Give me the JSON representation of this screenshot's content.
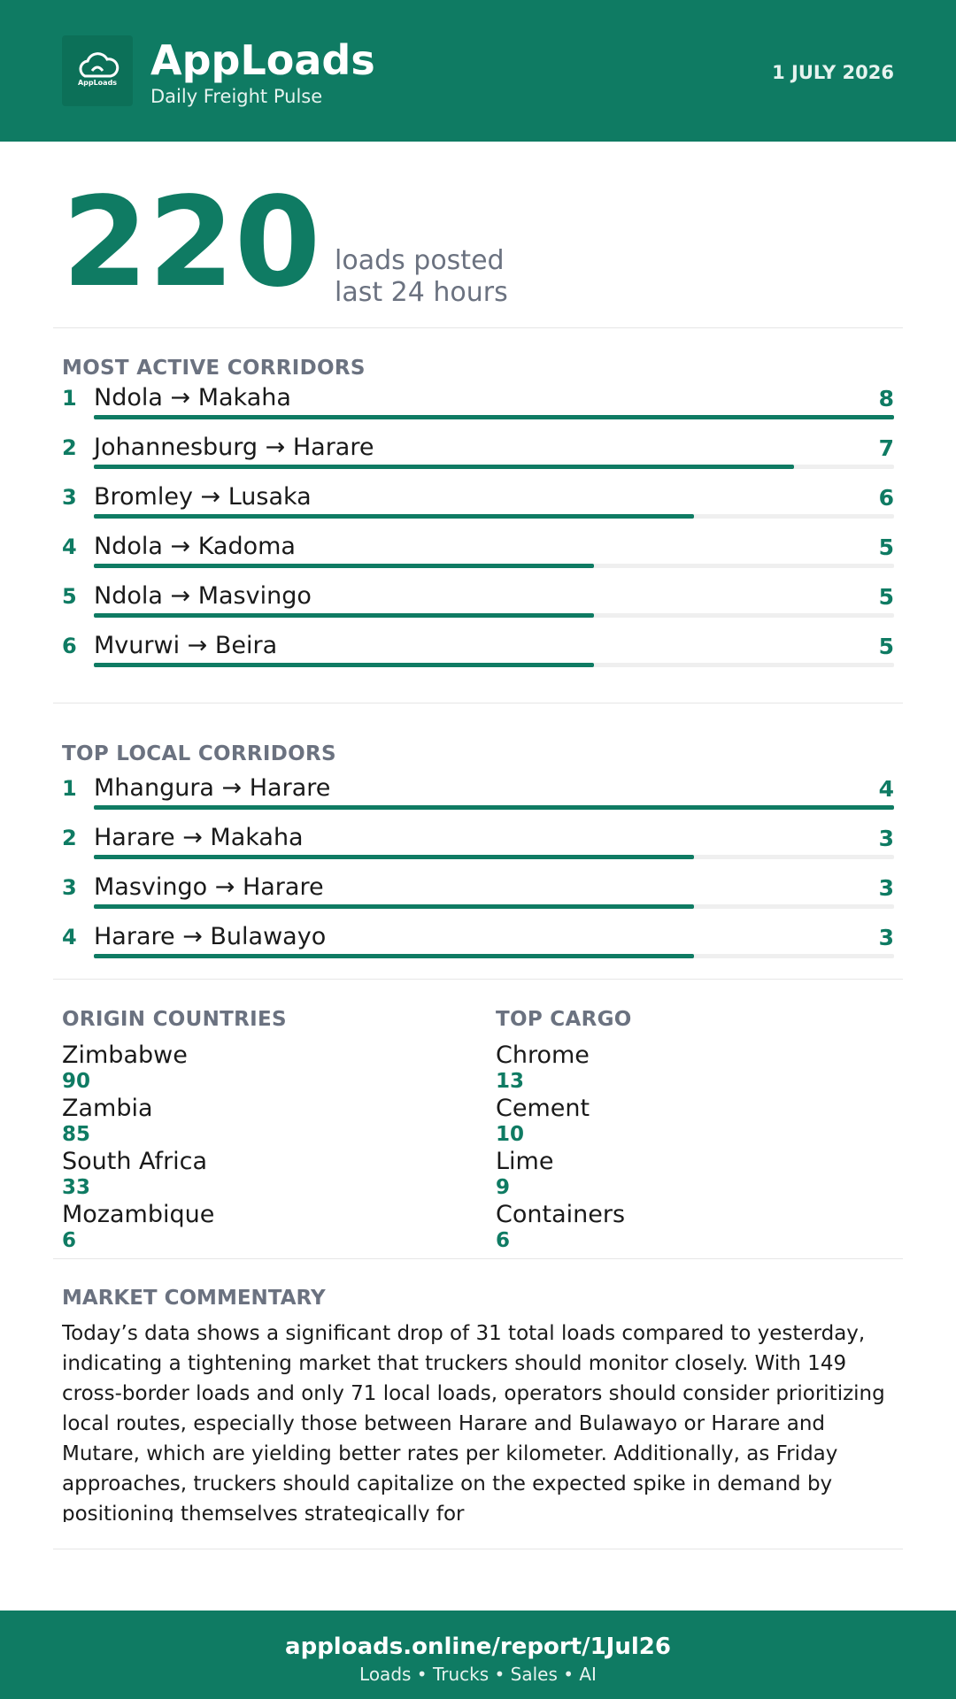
{
  "header": {
    "logo_text": "AppLoads",
    "title": "AppLoads",
    "subtitle": "Daily Freight Pulse",
    "date": "1 JULY 2026"
  },
  "headline": {
    "value": 220,
    "label_line1": "loads posted",
    "label_line2": "last 24 hours"
  },
  "most_active": {
    "title": "MOST ACTIVE CORRIDORS",
    "items": [
      {
        "rank": 1,
        "route": "Ndola → Makaha",
        "loads": 8
      },
      {
        "rank": 2,
        "route": "Johannesburg → Harare",
        "loads": 7
      },
      {
        "rank": 3,
        "route": "Bromley → Lusaka",
        "loads": 6
      },
      {
        "rank": 4,
        "route": "Ndola → Kadoma",
        "loads": 5
      },
      {
        "rank": 5,
        "route": "Ndola → Masvingo",
        "loads": 5
      },
      {
        "rank": 6,
        "route": "Mvurwi → Beira",
        "loads": 5
      }
    ]
  },
  "top_local": {
    "title": "TOP LOCAL CORRIDORS",
    "items": [
      {
        "rank": 1,
        "route": "Mhangura → Harare",
        "loads": 4
      },
      {
        "rank": 2,
        "route": "Harare → Makaha",
        "loads": 3
      },
      {
        "rank": 3,
        "route": "Masvingo → Harare",
        "loads": 3
      },
      {
        "rank": 4,
        "route": "Harare → Bulawayo",
        "loads": 3
      }
    ]
  },
  "origin_countries": {
    "title": "ORIGIN COUNTRIES",
    "items": [
      {
        "name": "Zimbabwe",
        "value": 90
      },
      {
        "name": "Zambia",
        "value": 85
      },
      {
        "name": "South Africa",
        "value": 33
      },
      {
        "name": "Mozambique",
        "value": 6
      }
    ]
  },
  "top_cargo": {
    "title": "TOP CARGO",
    "items": [
      {
        "name": "Chrome",
        "value": 13
      },
      {
        "name": "Cement",
        "value": 10
      },
      {
        "name": "Lime",
        "value": 9
      },
      {
        "name": "Containers",
        "value": 6
      }
    ]
  },
  "commentary": {
    "title": "MARKET COMMENTARY",
    "text": "Today’s data shows a significant drop of 31 total loads compared to yesterday, indicating a tightening market that truckers should monitor closely. With 149 cross-border loads and only 71 local loads, operators should consider prioritizing local routes, especially those between Harare and Bulawayo or Harare and Mutare, which are yielding better rates per kilometer. Additionally, as Friday approaches, truckers should capitalize on the expected spike in demand by positioning themselves strategically for"
  },
  "footer": {
    "url": "apploads.online/report/1Jul26",
    "tagline": "Loads • Trucks • Sales • AI"
  }
}
